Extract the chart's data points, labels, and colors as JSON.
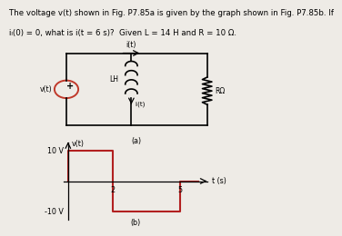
{
  "title_text": "The voltage v(t) shown in Fig. P7.85a is given by the graph shown in Fig. P7.85b. If",
  "title_text2": "iₗ(0) = 0, what is i(t = 6 s)?  Given L = 14 H and R = 10 Ω.",
  "background_color": "#eeebe6",
  "circuit_label_a": "(a)",
  "graph_label_b": "(b)",
  "source_label": "v(t)",
  "inductor_label": "LH",
  "current_label": "iₗ(t)",
  "resistor_label": "RΩ",
  "current_arrow_label": "i(t)",
  "graph_ylabel": "v(t)",
  "graph_xlabel": "t (s)",
  "graph_y_top": "10 V",
  "graph_y_bot": "-10 V",
  "waveform_color": "#b22020",
  "waveform_x": [
    0,
    0,
    2,
    2,
    5,
    5,
    5.8
  ],
  "waveform_y": [
    0,
    10,
    10,
    -10,
    -10,
    0,
    0
  ],
  "font_size_title": 6.2,
  "font_size_labels": 5.8,
  "font_size_circuit": 5.5
}
